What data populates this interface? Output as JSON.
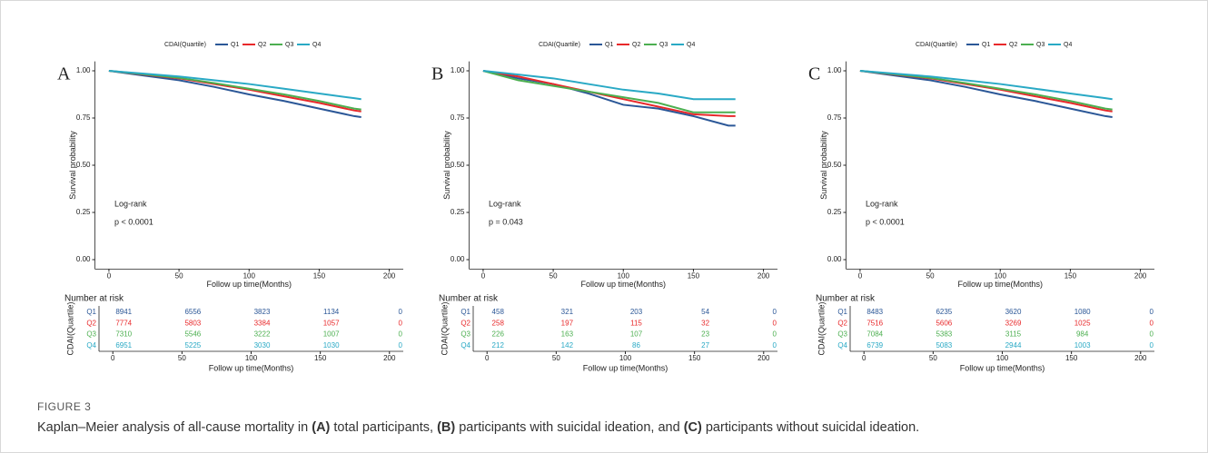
{
  "figure_label": "FIGURE 3",
  "caption": [
    "Kaplan–Meier analysis of all-cause mortality in",
    "(A)",
    "total participants,",
    "(B)",
    "participants with suicidal ideation, and",
    "(C)",
    "participants without suicidal ideation."
  ],
  "chart_data": [
    {
      "type": "line",
      "panel": "A",
      "legend_title": "CDAI(Quartile)",
      "xlabel": "Follow up time(Months)",
      "ylabel": "Survival probability",
      "annotations": [
        "Log-rank",
        "p < 0.0001"
      ],
      "x": [
        0,
        25,
        50,
        75,
        100,
        125,
        150,
        175,
        180
      ],
      "series": [
        {
          "name": "Q1",
          "color": "#2b5797",
          "values": [
            1,
            0.975,
            0.95,
            0.915,
            0.875,
            0.84,
            0.8,
            0.76,
            0.755
          ]
        },
        {
          "name": "Q2",
          "color": "#e8282a",
          "values": [
            1,
            0.98,
            0.96,
            0.93,
            0.9,
            0.865,
            0.83,
            0.79,
            0.785
          ]
        },
        {
          "name": "Q3",
          "color": "#4caf50",
          "values": [
            1,
            0.982,
            0.963,
            0.935,
            0.905,
            0.875,
            0.84,
            0.8,
            0.795
          ]
        },
        {
          "name": "Q4",
          "color": "#29a9c5",
          "values": [
            1,
            0.985,
            0.97,
            0.95,
            0.93,
            0.905,
            0.88,
            0.855,
            0.85
          ]
        }
      ],
      "xlim": [
        -10,
        210
      ],
      "xticks": [
        0,
        50,
        100,
        150,
        200
      ],
      "ylim": [
        -0.05,
        1.05
      ],
      "yticks": [
        {
          "value": 0,
          "label": "0.00"
        },
        {
          "value": 0.25,
          "label": "0.25"
        },
        {
          "value": 0.5,
          "label": "0.50"
        },
        {
          "value": 0.75,
          "label": "0.75"
        },
        {
          "value": 1,
          "label": "1.00"
        }
      ],
      "risk_table": {
        "title": "Number at risk",
        "ylabel": "CDAI(Quartile)",
        "xlabel": "Follow up time(Months)",
        "times": [
          0,
          50,
          100,
          150,
          200
        ],
        "xticks": [
          0,
          50,
          100,
          150,
          200
        ],
        "rows": [
          {
            "name": "Q1",
            "values": [
              8941,
              6556,
              3823,
              1134,
              0
            ]
          },
          {
            "name": "Q2",
            "values": [
              7774,
              5803,
              3384,
              1057,
              0
            ]
          },
          {
            "name": "Q3",
            "values": [
              7310,
              5546,
              3222,
              1007,
              0
            ]
          },
          {
            "name": "Q4",
            "values": [
              6951,
              5225,
              3030,
              1030,
              0
            ]
          }
        ]
      }
    },
    {
      "type": "line",
      "panel": "B",
      "legend_title": "CDAI(Quartile)",
      "xlabel": "Follow up time(Months)",
      "ylabel": "Survival probability",
      "annotations": [
        "Log-rank",
        "p = 0.043"
      ],
      "x": [
        0,
        25,
        50,
        75,
        100,
        125,
        150,
        175,
        180
      ],
      "series": [
        {
          "name": "Q1",
          "color": "#2b5797",
          "values": [
            1,
            0.96,
            0.93,
            0.88,
            0.82,
            0.8,
            0.76,
            0.71,
            0.71
          ]
        },
        {
          "name": "Q2",
          "color": "#e8282a",
          "values": [
            1,
            0.97,
            0.93,
            0.89,
            0.85,
            0.81,
            0.77,
            0.76,
            0.76
          ]
        },
        {
          "name": "Q3",
          "color": "#4caf50",
          "values": [
            1,
            0.95,
            0.92,
            0.89,
            0.86,
            0.83,
            0.78,
            0.78,
            0.78
          ]
        },
        {
          "name": "Q4",
          "color": "#29a9c5",
          "values": [
            1,
            0.98,
            0.96,
            0.93,
            0.9,
            0.88,
            0.85,
            0.85,
            0.85
          ]
        }
      ],
      "xlim": [
        -10,
        210
      ],
      "xticks": [
        0,
        50,
        100,
        150,
        200
      ],
      "ylim": [
        -0.05,
        1.05
      ],
      "yticks": [
        {
          "value": 0,
          "label": "0.00"
        },
        {
          "value": 0.25,
          "label": "0.25"
        },
        {
          "value": 0.5,
          "label": "0.50"
        },
        {
          "value": 0.75,
          "label": "0.75"
        },
        {
          "value": 1,
          "label": "1.00"
        }
      ],
      "risk_table": {
        "title": "Number at risk",
        "ylabel": "CDAI(Quartile)",
        "xlabel": "Follow up time(Months)",
        "times": [
          0,
          50,
          100,
          150,
          200
        ],
        "xticks": [
          0,
          50,
          100,
          150,
          200
        ],
        "rows": [
          {
            "name": "Q1",
            "values": [
              458,
              321,
              203,
              54,
              0
            ]
          },
          {
            "name": "Q2",
            "values": [
              258,
              197,
              115,
              32,
              0
            ]
          },
          {
            "name": "Q3",
            "values": [
              226,
              163,
              107,
              23,
              0
            ]
          },
          {
            "name": "Q4",
            "values": [
              212,
              142,
              86,
              27,
              0
            ]
          }
        ]
      }
    },
    {
      "type": "line",
      "panel": "C",
      "legend_title": "CDAI(Quartile)",
      "xlabel": "Follow up time(Months)",
      "ylabel": "Survival probability",
      "annotations": [
        "Log-rank",
        "p < 0.0001"
      ],
      "x": [
        0,
        25,
        50,
        75,
        100,
        125,
        150,
        175,
        180
      ],
      "series": [
        {
          "name": "Q1",
          "color": "#2b5797",
          "values": [
            1,
            0.975,
            0.95,
            0.915,
            0.875,
            0.84,
            0.8,
            0.76,
            0.755
          ]
        },
        {
          "name": "Q2",
          "color": "#e8282a",
          "values": [
            1,
            0.98,
            0.96,
            0.93,
            0.9,
            0.865,
            0.83,
            0.79,
            0.785
          ]
        },
        {
          "name": "Q3",
          "color": "#4caf50",
          "values": [
            1,
            0.982,
            0.963,
            0.935,
            0.905,
            0.875,
            0.84,
            0.8,
            0.795
          ]
        },
        {
          "name": "Q4",
          "color": "#29a9c5",
          "values": [
            1,
            0.985,
            0.97,
            0.95,
            0.93,
            0.905,
            0.88,
            0.855,
            0.85
          ]
        }
      ],
      "xlim": [
        -10,
        210
      ],
      "xticks": [
        0,
        50,
        100,
        150,
        200
      ],
      "ylim": [
        -0.05,
        1.05
      ],
      "yticks": [
        {
          "value": 0,
          "label": "0.00"
        },
        {
          "value": 0.25,
          "label": "0.25"
        },
        {
          "value": 0.5,
          "label": "0.50"
        },
        {
          "value": 0.75,
          "label": "0.75"
        },
        {
          "value": 1,
          "label": "1.00"
        }
      ],
      "risk_table": {
        "title": "Number at risk",
        "ylabel": "CDAI(Quartile)",
        "xlabel": "Follow up time(Months)",
        "times": [
          0,
          50,
          100,
          150,
          200
        ],
        "xticks": [
          0,
          50,
          100,
          150,
          200
        ],
        "rows": [
          {
            "name": "Q1",
            "values": [
              8483,
              6235,
              3620,
              1080,
              0
            ]
          },
          {
            "name": "Q2",
            "values": [
              7516,
              5606,
              3269,
              1025,
              0
            ]
          },
          {
            "name": "Q3",
            "values": [
              7084,
              5383,
              3115,
              984,
              0
            ]
          },
          {
            "name": "Q4",
            "values": [
              6739,
              5083,
              2944,
              1003,
              0
            ]
          }
        ]
      }
    }
  ]
}
